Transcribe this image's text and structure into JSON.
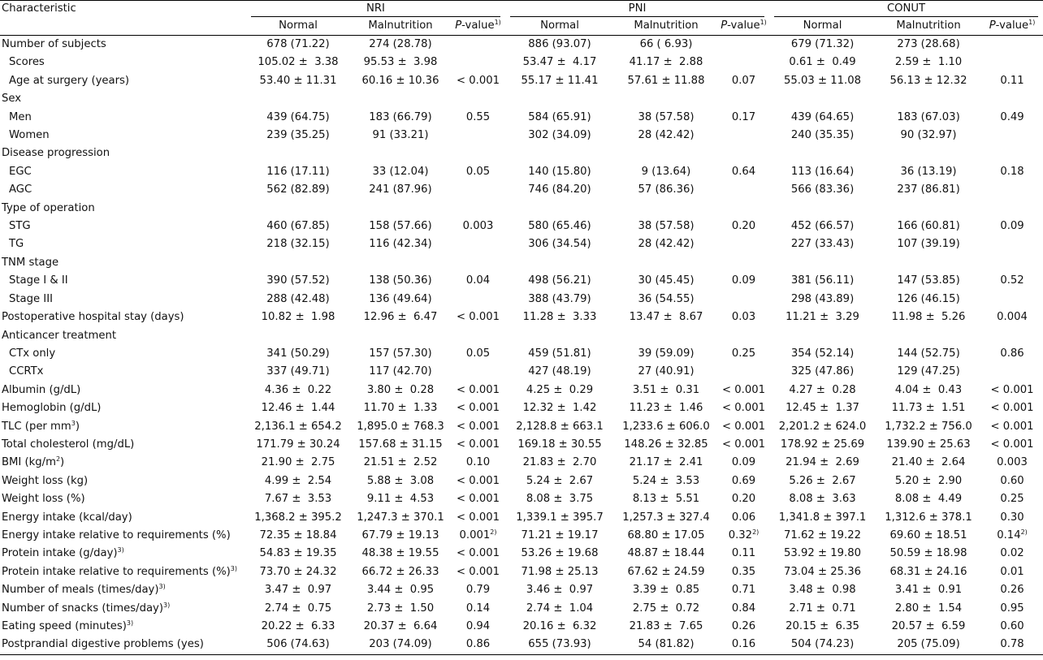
{
  "header": {
    "characteristic": "Characteristic",
    "groups": [
      "NRI",
      "PNI",
      "CONUT"
    ],
    "normal": "Normal",
    "malnutrition": "Malnutrition",
    "pvalue_italic": "P",
    "pvalue_rest": "-value",
    "pvalue_sup": "1)"
  },
  "rows": [
    {
      "label": "Number of subjects",
      "indent": false,
      "cells": [
        "678 (71.22)",
        "274 (28.78)",
        "",
        "886 (93.07)",
        "66 ( 6.93)",
        "",
        "679 (71.32)",
        "273 (28.68)",
        ""
      ]
    },
    {
      "label": "Scores",
      "indent": true,
      "cells": [
        "105.02 ±  3.38",
        "95.53 ±  3.98",
        "",
        "53.47 ±  4.17",
        "41.17 ±  2.88",
        "",
        "0.61 ±  0.49",
        "2.59 ±  1.10",
        ""
      ]
    },
    {
      "label": "Age at surgery (years)",
      "indent": true,
      "cells": [
        "53.40 ± 11.31",
        "60.16 ± 10.36",
        "< 0.001",
        "55.17 ± 11.41",
        "57.61 ± 11.88",
        "0.07",
        "55.03 ± 11.08",
        "56.13 ± 12.32",
        "0.11"
      ]
    },
    {
      "label": "Sex",
      "indent": false,
      "cells": [
        "",
        "",
        "",
        "",
        "",
        "",
        "",
        "",
        ""
      ]
    },
    {
      "label": "Men",
      "indent": true,
      "cells": [
        "439 (64.75)",
        "183 (66.79)",
        "0.55",
        "584 (65.91)",
        "38 (57.58)",
        "0.17",
        "439 (64.65)",
        "183 (67.03)",
        "0.49"
      ]
    },
    {
      "label": "Women",
      "indent": true,
      "cells": [
        "239 (35.25)",
        "91 (33.21)",
        "",
        "302 (34.09)",
        "28 (42.42)",
        "",
        "240 (35.35)",
        "90 (32.97)",
        ""
      ]
    },
    {
      "label": "Disease progression",
      "indent": false,
      "cells": [
        "",
        "",
        "",
        "",
        "",
        "",
        "",
        "",
        ""
      ]
    },
    {
      "label": "EGC",
      "indent": true,
      "cells": [
        "116 (17.11)",
        "33 (12.04)",
        "0.05",
        "140 (15.80)",
        "9 (13.64)",
        "0.64",
        "113 (16.64)",
        "36 (13.19)",
        "0.18"
      ]
    },
    {
      "label": "AGC",
      "indent": true,
      "cells": [
        "562 (82.89)",
        "241 (87.96)",
        "",
        "746 (84.20)",
        "57 (86.36)",
        "",
        "566 (83.36)",
        "237 (86.81)",
        ""
      ]
    },
    {
      "label": "Type of operation",
      "indent": false,
      "cells": [
        "",
        "",
        "",
        "",
        "",
        "",
        "",
        "",
        ""
      ]
    },
    {
      "label": "STG",
      "indent": true,
      "cells": [
        "460 (67.85)",
        "158 (57.66)",
        "0.003",
        "580 (65.46)",
        "38 (57.58)",
        "0.20",
        "452 (66.57)",
        "166 (60.81)",
        "0.09"
      ]
    },
    {
      "label": "TG",
      "indent": true,
      "cells": [
        "218 (32.15)",
        "116 (42.34)",
        "",
        "306 (34.54)",
        "28 (42.42)",
        "",
        "227 (33.43)",
        "107 (39.19)",
        ""
      ]
    },
    {
      "label": "TNM stage",
      "indent": false,
      "cells": [
        "",
        "",
        "",
        "",
        "",
        "",
        "",
        "",
        ""
      ]
    },
    {
      "label": "Stage I & II",
      "indent": true,
      "cells": [
        "390 (57.52)",
        "138 (50.36)",
        "0.04",
        "498 (56.21)",
        "30 (45.45)",
        "0.09",
        "381 (56.11)",
        "147 (53.85)",
        "0.52"
      ]
    },
    {
      "label": "Stage III",
      "indent": true,
      "cells": [
        "288 (42.48)",
        "136 (49.64)",
        "",
        "388 (43.79)",
        "36 (54.55)",
        "",
        "298 (43.89)",
        "126 (46.15)",
        ""
      ]
    },
    {
      "label": "Postoperative hospital stay (days)",
      "indent": false,
      "cells": [
        "10.82 ±  1.98",
        "12.96 ±  6.47",
        "< 0.001",
        "11.28 ±  3.33",
        "13.47 ±  8.67",
        "0.03",
        "11.21 ±  3.29",
        "11.98 ±  5.26",
        "0.004"
      ]
    },
    {
      "label": "Anticancer treatment",
      "indent": false,
      "cells": [
        "",
        "",
        "",
        "",
        "",
        "",
        "",
        "",
        ""
      ]
    },
    {
      "label": "CTx only",
      "indent": true,
      "cells": [
        "341 (50.29)",
        "157 (57.30)",
        "0.05",
        "459 (51.81)",
        "39 (59.09)",
        "0.25",
        "354 (52.14)",
        "144 (52.75)",
        "0.86"
      ]
    },
    {
      "label": "CCRTx",
      "indent": true,
      "cells": [
        "337 (49.71)",
        "117 (42.70)",
        "",
        "427 (48.19)",
        "27 (40.91)",
        "",
        "325 (47.86)",
        "129 (47.25)",
        ""
      ]
    },
    {
      "label": "Albumin (g/dL)",
      "indent": false,
      "cells": [
        "4.36 ±  0.22",
        "3.80 ±  0.28",
        "< 0.001",
        "4.25 ±  0.29",
        "3.51 ±  0.31",
        "< 0.001",
        "4.27 ±  0.28",
        "4.04 ±  0.43",
        "< 0.001"
      ]
    },
    {
      "label": "Hemoglobin (g/dL)",
      "indent": false,
      "cells": [
        "12.46 ±  1.44",
        "11.70 ±  1.33",
        "< 0.001",
        "12.32 ±  1.42",
        "11.23 ±  1.46",
        "< 0.001",
        "12.45 ±  1.37",
        "11.73 ±  1.51",
        "< 0.001"
      ]
    },
    {
      "label": "TLC (per mm",
      "label_sup": "3",
      "label_after": ")",
      "indent": false,
      "cells": [
        "2,136.1 ± 654.2",
        "1,895.0 ± 768.3",
        "< 0.001",
        "2,128.8 ± 663.1",
        "1,233.6 ± 606.0",
        "< 0.001",
        "2,201.2 ± 624.0",
        "1,732.2 ± 756.0",
        "< 0.001"
      ]
    },
    {
      "label": "Total cholesterol (mg/dL)",
      "indent": false,
      "cells": [
        "171.79 ± 30.24",
        "157.68 ± 31.15",
        "< 0.001",
        "169.18 ± 30.55",
        "148.26 ± 32.85",
        "< 0.001",
        "178.92 ± 25.69",
        "139.90 ± 25.63",
        "< 0.001"
      ]
    },
    {
      "label": "BMI (kg/m",
      "label_sup": "2",
      "label_after": ")",
      "indent": false,
      "cells": [
        "21.90 ±  2.75",
        "21.51 ±  2.52",
        "0.10",
        "21.83 ±  2.70",
        "21.17 ±  2.41",
        "0.09",
        "21.94 ±  2.69",
        "21.40 ±  2.64",
        "0.003"
      ]
    },
    {
      "label": "Weight loss (kg)",
      "indent": false,
      "cells": [
        "4.99 ±  2.54",
        "5.88 ±  3.08",
        "< 0.001",
        "5.24 ±  2.67",
        "5.24 ±  3.53",
        "0.69",
        "5.26 ±  2.67",
        "5.20 ±  2.90",
        "0.60"
      ]
    },
    {
      "label": "Weight loss (%)",
      "indent": false,
      "cells": [
        "7.67 ±  3.53",
        "9.11 ±  4.53",
        "< 0.001",
        "8.08 ±  3.75",
        "8.13 ±  5.51",
        "0.20",
        "8.08 ±  3.63",
        "8.08 ±  4.49",
        "0.25"
      ]
    },
    {
      "label": "Energy intake (kcal/day)",
      "indent": false,
      "cells": [
        "1,368.2 ± 395.2",
        "1,247.3 ± 370.1",
        "< 0.001",
        "1,339.1 ± 395.7",
        "1,257.3 ± 327.4",
        "0.06",
        "1,341.8 ± 397.1",
        "1,312.6 ± 378.1",
        "0.30"
      ]
    },
    {
      "label": "Energy intake relative to requirements (%)",
      "indent": false,
      "cells": [
        "72.35 ± 18.84",
        "67.79 ± 19.13",
        "0.001",
        "71.21 ± 19.17",
        "68.80 ± 17.05",
        "0.32",
        "71.62 ± 19.22",
        "69.60 ± 18.51",
        "0.14"
      ],
      "p_sup": "2)"
    },
    {
      "label": "Protein intake (g/day)",
      "label_sup": "3)",
      "indent": false,
      "cells": [
        "54.83 ± 19.35",
        "48.38 ± 19.55",
        "< 0.001",
        "53.26 ± 19.68",
        "48.87 ± 18.44",
        "0.11",
        "53.92 ± 19.80",
        "50.59 ± 18.98",
        "0.02"
      ]
    },
    {
      "label": "Protein intake relative to requirements (%)",
      "label_sup": "3)",
      "indent": false,
      "cells": [
        "73.70 ± 24.32",
        "66.72 ± 26.33",
        "< 0.001",
        "71.98 ± 25.13",
        "67.62 ± 24.59",
        "0.35",
        "73.04 ± 25.36",
        "68.31 ± 24.16",
        "0.01"
      ]
    },
    {
      "label": "Number of meals (times/day)",
      "label_sup": "3)",
      "indent": false,
      "cells": [
        "3.47 ±  0.97",
        "3.44 ±  0.95",
        "0.79",
        "3.46 ±  0.97",
        "3.39 ±  0.85",
        "0.71",
        "3.48 ±  0.98",
        "3.41 ±  0.91",
        "0.26"
      ]
    },
    {
      "label": "Number of snacks (times/day)",
      "label_sup": "3)",
      "indent": false,
      "cells": [
        "2.74 ±  0.75",
        "2.73 ±  1.50",
        "0.14",
        "2.74 ±  1.04",
        "2.75 ±  0.72",
        "0.84",
        "2.71 ±  0.71",
        "2.80 ±  1.54",
        "0.95"
      ]
    },
    {
      "label": "Eating speed (minutes)",
      "label_sup": "3)",
      "indent": false,
      "cells": [
        "20.22 ±  6.33",
        "20.37 ±  6.64",
        "0.94",
        "20.16 ±  6.32",
        "21.83 ±  7.65",
        "0.26",
        "20.15 ±  6.35",
        "20.57 ±  6.59",
        "0.60"
      ]
    },
    {
      "label": "Postprandial digestive problems (yes)",
      "indent": false,
      "cells": [
        "506 (74.63)",
        "203 (74.09)",
        "0.86",
        "655 (73.93)",
        "54 (81.82)",
        "0.16",
        "504 (74.23)",
        "205 (75.09)",
        "0.78"
      ]
    }
  ]
}
